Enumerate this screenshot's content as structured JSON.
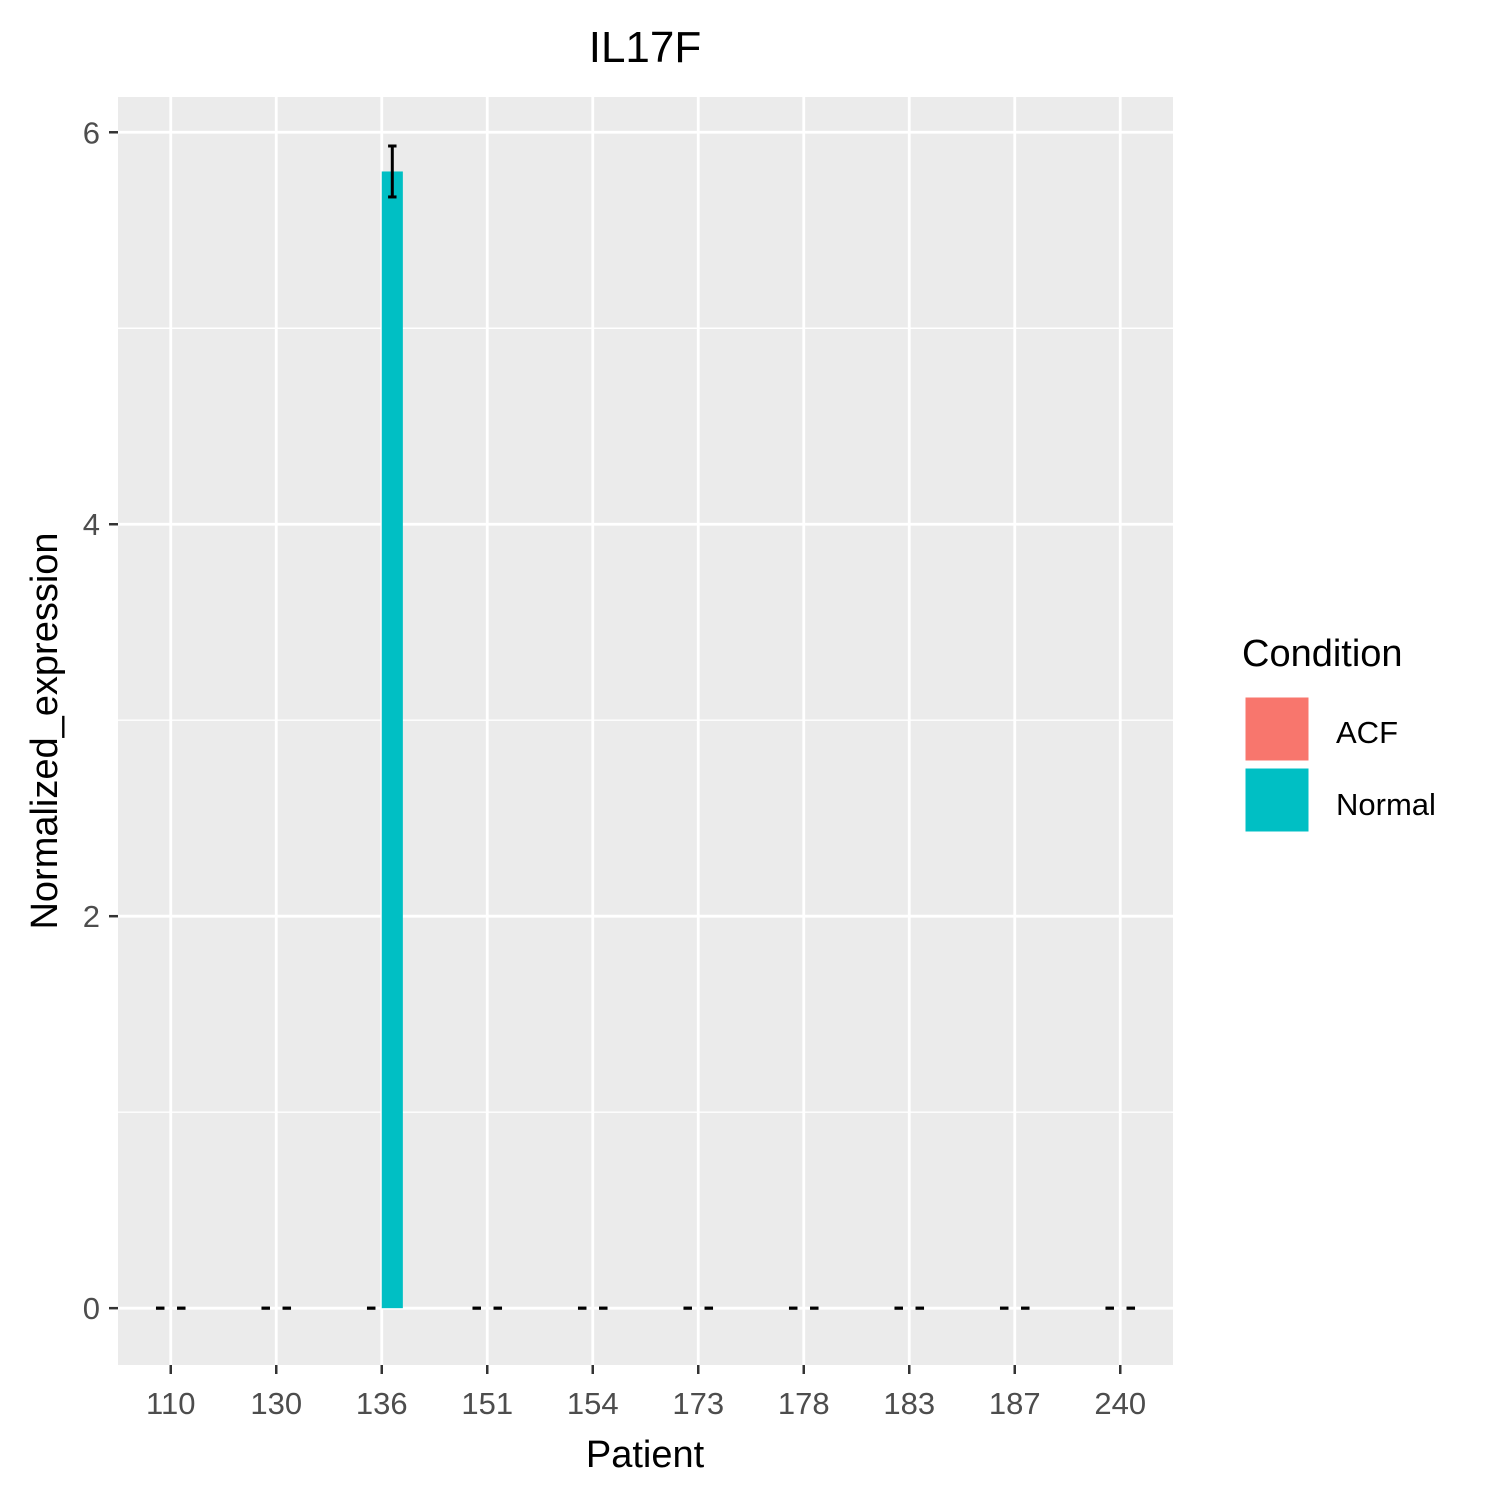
{
  "chart_data": {
    "type": "bar",
    "title": "IL17F",
    "xlabel": "Patient",
    "ylabel": "Normalized_expression",
    "categories": [
      "110",
      "130",
      "136",
      "151",
      "154",
      "173",
      "178",
      "183",
      "187",
      "240"
    ],
    "ylim": [
      -0.29,
      6.18
    ],
    "yticks": [
      0,
      2,
      4,
      6
    ],
    "grid": true,
    "legend_position": "right",
    "series": [
      {
        "name": "ACF",
        "color": "#F8766D",
        "values": [
          0,
          0,
          0,
          0,
          0,
          0,
          0,
          0,
          0,
          0
        ],
        "error_low": [
          0,
          0,
          0,
          0,
          0,
          0,
          0,
          0,
          0,
          0
        ],
        "error_high": [
          0,
          0,
          0,
          0,
          0,
          0,
          0,
          0,
          0,
          0
        ]
      },
      {
        "name": "Normal",
        "color": "#00BFC4",
        "values": [
          0,
          0,
          5.8,
          0,
          0,
          0,
          0,
          0,
          0,
          0
        ],
        "error_low": [
          0,
          0,
          5.67,
          0,
          0,
          0,
          0,
          0,
          0,
          0
        ],
        "error_high": [
          0,
          0,
          5.93,
          0,
          0,
          0,
          0,
          0,
          0,
          0
        ]
      }
    ],
    "legend": {
      "title": "Condition",
      "entries": [
        "ACF",
        "Normal"
      ]
    },
    "colors": {
      "panel_background": "#EBEBEB",
      "grid": "#FFFFFF",
      "error_bar": "#000000",
      "tick_text": "#4D4D4D"
    }
  }
}
